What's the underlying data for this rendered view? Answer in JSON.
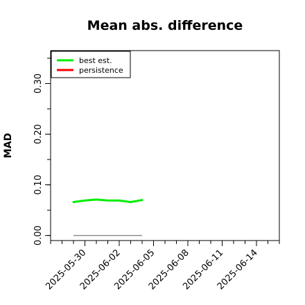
{
  "chart_data": {
    "type": "line",
    "title": "Mean abs. difference",
    "xlabel": "",
    "ylabel": "MAD",
    "x_ticks": [
      "2025-05-30",
      "2025-06-02",
      "2025-06-05",
      "2025-06-08",
      "2025-06-11",
      "2025-06-14"
    ],
    "xlim": [
      "2025-05-27",
      "2025-06-16"
    ],
    "y_ticks": [
      "0.00",
      "0.10",
      "0.20",
      "0.30"
    ],
    "ylim": [
      -0.01,
      0.365
    ],
    "legend_position": "top-left",
    "grid": false,
    "series": [
      {
        "name": "best est.",
        "color": "#00ee00",
        "x": [
          "2025-05-29",
          "2025-05-30",
          "2025-05-31",
          "2025-06-01",
          "2025-06-02",
          "2025-06-03",
          "2025-06-04"
        ],
        "values": [
          0.066,
          0.069,
          0.071,
          0.069,
          0.069,
          0.066,
          0.07
        ]
      },
      {
        "name": "persistence",
        "color": "#ff0000",
        "x": [],
        "values": []
      }
    ],
    "reference_line": {
      "color": "#888888",
      "x": [
        "2025-05-29",
        "2025-06-04"
      ],
      "value": 0.0
    }
  }
}
